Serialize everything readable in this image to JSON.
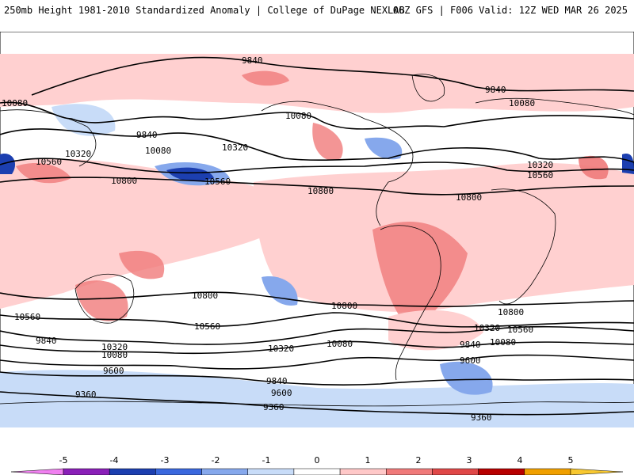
{
  "header": {
    "left": "250mb Height 1981-2010 Standardized Anomaly | College of DuPage NEXLAB",
    "right": "06Z GFS | F006 Valid: 12Z WED MAR 26 2025"
  },
  "contours": {
    "labels": [
      "9840",
      "10080",
      "9840",
      "10080",
      "10320",
      "10560",
      "10800",
      "10080",
      "10320",
      "10560",
      "10800",
      "9840",
      "10080",
      "10320",
      "10560",
      "10800",
      "10800",
      "10560",
      "10320",
      "10080",
      "9840",
      "9600",
      "9360",
      "10800",
      "10560",
      "10320",
      "10080",
      "9840",
      "9600",
      "9360",
      "10800",
      "10560",
      "10320",
      "10080",
      "9840",
      "9600",
      "9360"
    ]
  },
  "colorbar": {
    "ticks": [
      "-5",
      "-4",
      "-3",
      "-2",
      "-1",
      "0",
      "1",
      "2",
      "3",
      "4",
      "5"
    ],
    "colors": [
      "#f080f0",
      "#8a1fb8",
      "#1c3fb0",
      "#3a68de",
      "#86a8ec",
      "#c8dcf8",
      "#ffffff",
      "#ffc8c8",
      "#f07a7a",
      "#e04848",
      "#b80000",
      "#f0a000",
      "#f8c830"
    ]
  },
  "map": {
    "background": "#ffffff",
    "ocean_land_lines": "#000000"
  }
}
